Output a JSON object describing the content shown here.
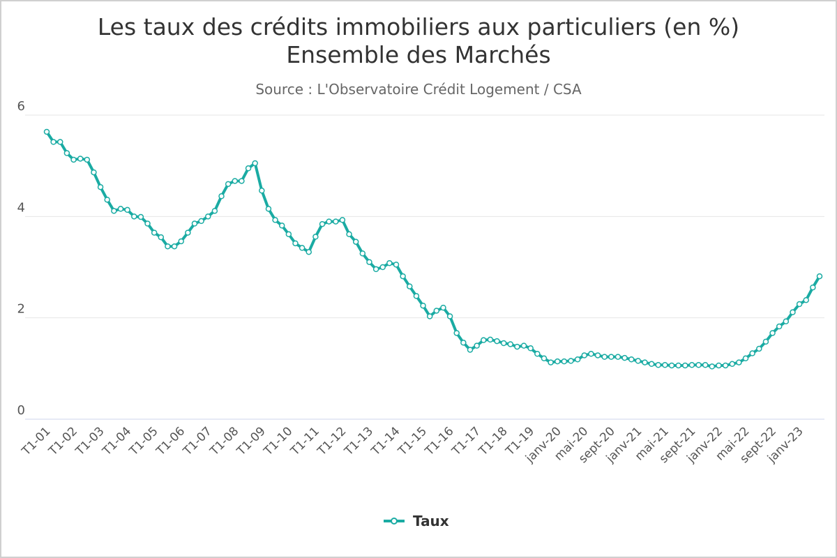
{
  "chart_data": {
    "type": "line",
    "title_lines": [
      "Les taux des crédits immobiliers aux particuliers (en %)",
      "Ensemble des Marchés"
    ],
    "subtitle": "Source : L'Observatoire Crédit Logement / CSA",
    "ylim": [
      0,
      6
    ],
    "yticks": [
      0,
      2,
      4,
      6
    ],
    "xtick_labels": [
      "T1-01",
      "T1-02",
      "T1-03",
      "T1-04",
      "T1-05",
      "T1-06",
      "T1-07",
      "T1-08",
      "T1-09",
      "T1-10",
      "T1-11",
      "T1-12",
      "T1-13",
      "T1-14",
      "T1-15",
      "T1-16",
      "T1-17",
      "T1-18",
      "T1-19",
      "janv-20",
      "mai-20",
      "sept-20",
      "janv-21",
      "mai-21",
      "sept-21",
      "janv-22",
      "mai-22",
      "sept-22",
      "janv-23"
    ],
    "xtick_positions": [
      0,
      4,
      8,
      12,
      16,
      20,
      24,
      28,
      32,
      36,
      40,
      44,
      48,
      52,
      56,
      60,
      64,
      68,
      72,
      76,
      80,
      84,
      88,
      92,
      96,
      100,
      104,
      108,
      112
    ],
    "grid": true,
    "legend_position": "bottom-center",
    "series": [
      {
        "name": "Taux",
        "color": "#1aaba3",
        "values": [
          5.67,
          5.47,
          5.47,
          5.25,
          5.12,
          5.14,
          5.12,
          4.87,
          4.58,
          4.33,
          4.11,
          4.15,
          4.13,
          4.0,
          3.99,
          3.86,
          3.68,
          3.59,
          3.41,
          3.41,
          3.51,
          3.68,
          3.86,
          3.91,
          4.0,
          4.11,
          4.4,
          4.64,
          4.7,
          4.7,
          4.95,
          5.05,
          4.51,
          4.15,
          3.93,
          3.82,
          3.65,
          3.47,
          3.38,
          3.3,
          3.6,
          3.85,
          3.9,
          3.9,
          3.93,
          3.65,
          3.5,
          3.27,
          3.1,
          2.96,
          3.0,
          3.08,
          3.05,
          2.82,
          2.62,
          2.43,
          2.24,
          2.03,
          2.14,
          2.2,
          2.03,
          1.7,
          1.51,
          1.37,
          1.45,
          1.56,
          1.57,
          1.54,
          1.5,
          1.48,
          1.43,
          1.45,
          1.4,
          1.29,
          1.2,
          1.12,
          1.14,
          1.14,
          1.15,
          1.18,
          1.26,
          1.29,
          1.26,
          1.23,
          1.23,
          1.23,
          1.21,
          1.18,
          1.15,
          1.12,
          1.09,
          1.07,
          1.07,
          1.06,
          1.06,
          1.06,
          1.07,
          1.07,
          1.07,
          1.04,
          1.06,
          1.06,
          1.09,
          1.12,
          1.2,
          1.3,
          1.39,
          1.53,
          1.7,
          1.83,
          1.93,
          2.11,
          2.27,
          2.35,
          2.6,
          2.82
        ]
      }
    ]
  }
}
